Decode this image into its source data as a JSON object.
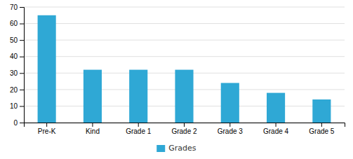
{
  "chart_data": {
    "type": "bar",
    "categories": [
      "Pre-K",
      "Kind",
      "Grade 1",
      "Grade 2",
      "Grade 3",
      "Grade 4",
      "Grade 5"
    ],
    "series": [
      {
        "name": "Grades",
        "color": "#2fa8d5",
        "values": [
          65,
          32,
          32,
          32,
          24,
          18,
          14
        ]
      }
    ],
    "ylim": [
      0,
      70
    ],
    "yticks": [
      0,
      10,
      20,
      30,
      40,
      50,
      60,
      70
    ],
    "grid": true,
    "legend": "bottom"
  }
}
